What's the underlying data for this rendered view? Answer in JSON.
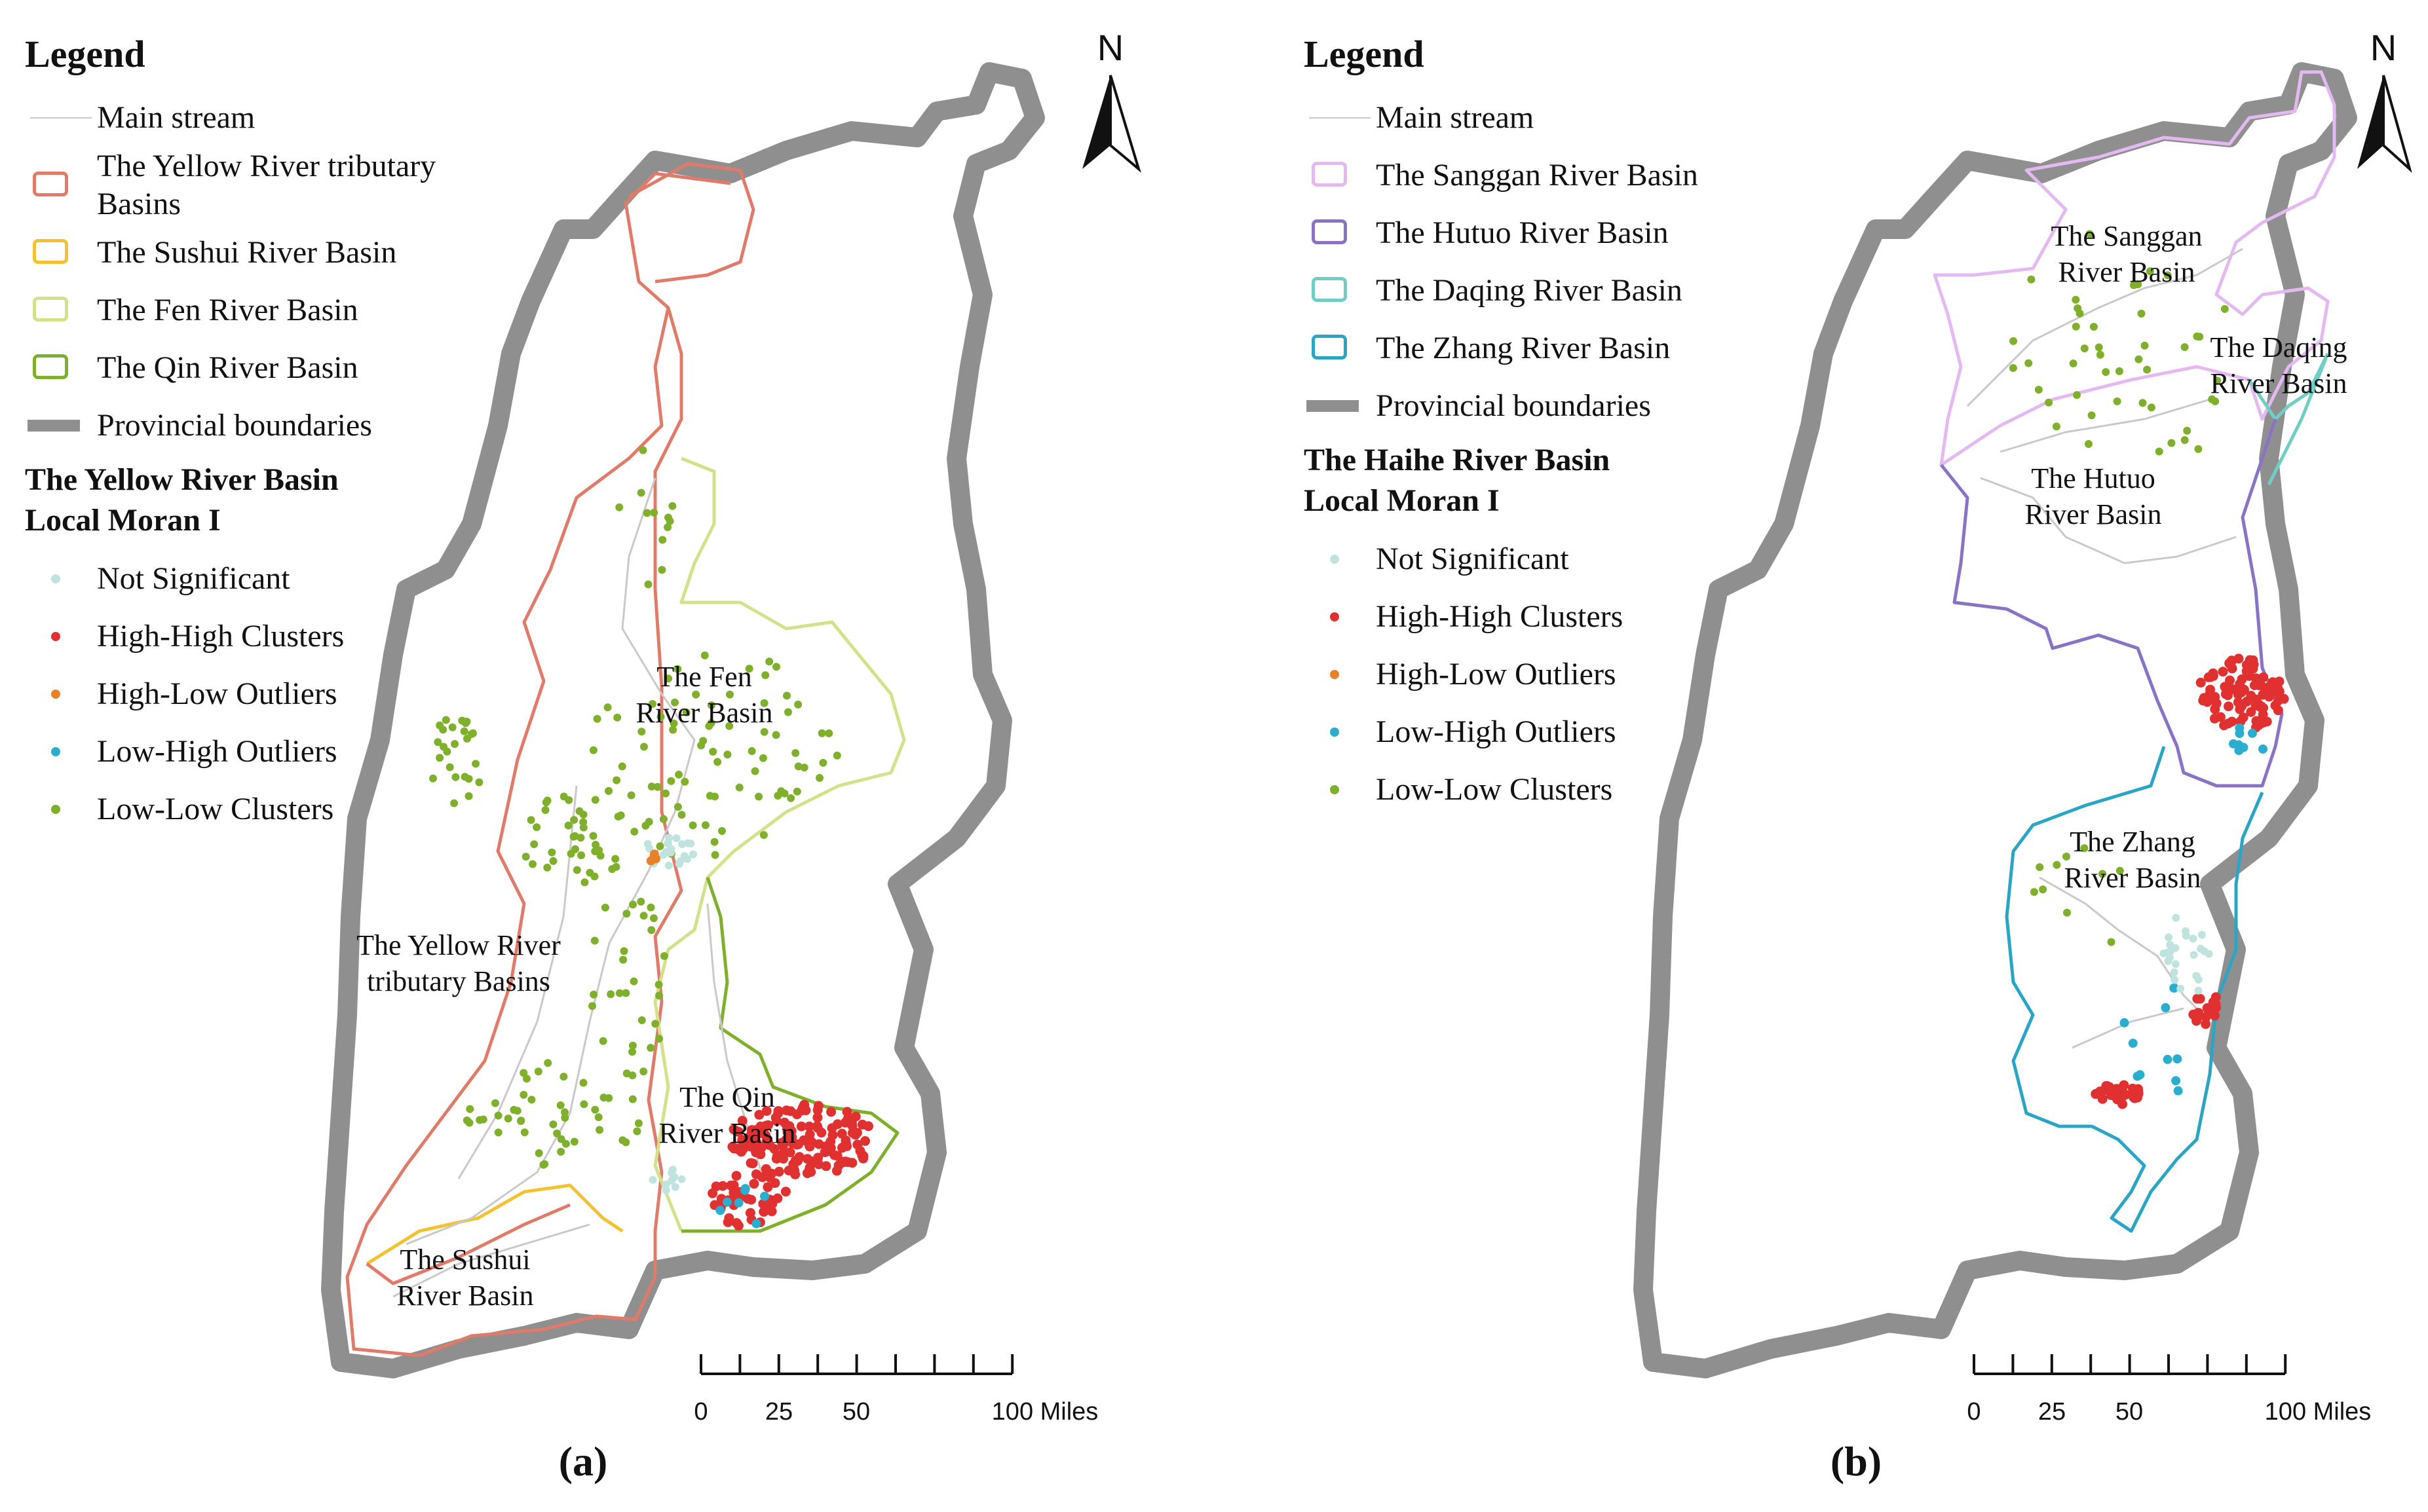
{
  "panel_a": {
    "legend_title": "Legend",
    "legend_items": [
      {
        "label": "Main stream",
        "type": "line"
      },
      {
        "label": "The Yellow River tributary\nBasins",
        "type": "box",
        "color": "#e07b6a"
      },
      {
        "label": "The Sushui River Basin",
        "type": "box",
        "color": "#f2c230"
      },
      {
        "label": "The Fen River Basin",
        "type": "box",
        "color": "#d4e08a"
      },
      {
        "label": "The Qin River Basin",
        "type": "box",
        "color": "#7fb02b"
      },
      {
        "label": "Provincial boundaries",
        "type": "bar"
      }
    ],
    "moran_title": "The Yellow River Basin\nLocal Moran I",
    "moran_items": [
      {
        "label": "Not Significant",
        "color": "#bfe3de"
      },
      {
        "label": "High-High Clusters",
        "color": "#e03030"
      },
      {
        "label": "High-Low Outliers",
        "color": "#e8822a"
      },
      {
        "label": "Low-High Outliers",
        "color": "#2aaed0"
      },
      {
        "label": "Low-Low Clusters",
        "color": "#7fb02b"
      }
    ],
    "basin_labels": {
      "fen": [
        "The Fen",
        "River Basin"
      ],
      "yellow": [
        "The Yellow River",
        "tributary Basins"
      ],
      "qin": [
        "The Qin",
        "River Basin"
      ],
      "sushui": [
        "The Sushui",
        "River Basin"
      ]
    },
    "north": "N",
    "scale": {
      "ticks": [
        "0",
        "25",
        "50",
        "100 Miles"
      ]
    },
    "panel_label": "(a)"
  },
  "panel_b": {
    "legend_title": "Legend",
    "legend_items": [
      {
        "label": "Main stream",
        "type": "line"
      },
      {
        "label": "The Sanggan River Basin",
        "type": "box",
        "color": "#e4b8f0"
      },
      {
        "label": "The Hutuo River Basin",
        "type": "box",
        "color": "#8a73c4"
      },
      {
        "label": "The Daqing River Basin",
        "type": "box",
        "color": "#6fcfc4"
      },
      {
        "label": "The Zhang River Basin",
        "type": "box",
        "color": "#2aa5c6"
      },
      {
        "label": "Provincial boundaries",
        "type": "bar"
      }
    ],
    "moran_title": "The Haihe River Basin\nLocal Moran I",
    "moran_items": [
      {
        "label": "Not Significant",
        "color": "#bfe3de"
      },
      {
        "label": "High-High Clusters",
        "color": "#e03030"
      },
      {
        "label": "High-Low Outliers",
        "color": "#e8822a"
      },
      {
        "label": "Low-High Outliers",
        "color": "#2aaed0"
      },
      {
        "label": "Low-Low Clusters",
        "color": "#7fb02b"
      }
    ],
    "basin_labels": {
      "sanggan": [
        "The Sanggan",
        "River Basin"
      ],
      "daqing": [
        "The Daqing",
        "River Basin"
      ],
      "hutuo": [
        "The Hutuo",
        "River Basin"
      ],
      "zhang": [
        "The Zhang",
        "River Basin"
      ]
    },
    "north": "N",
    "scale": {
      "ticks": [
        "0",
        "25",
        "50",
        "100 Miles"
      ]
    },
    "panel_label": "(b)"
  },
  "colors": {
    "province": "#8f8f8f",
    "stream": "#c9c9c9",
    "not_significant": "#bfe3de",
    "high_high": "#e03030",
    "high_low": "#e8822a",
    "low_high": "#2aaed0",
    "low_low": "#7fb02b"
  }
}
